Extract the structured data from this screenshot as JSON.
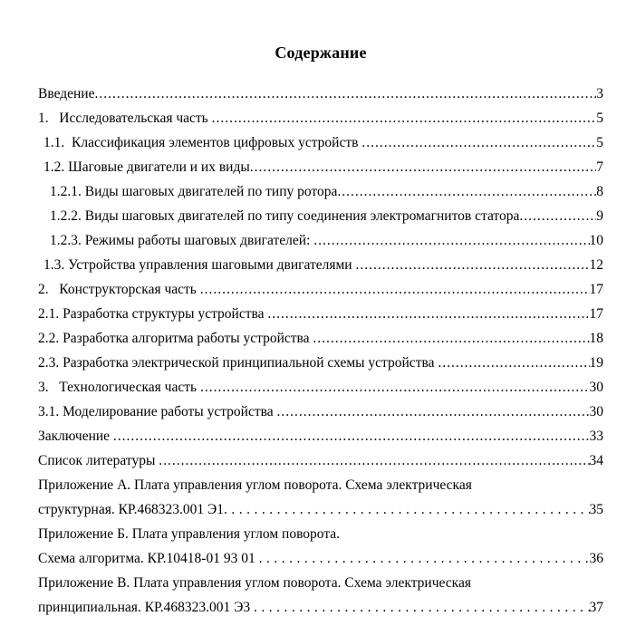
{
  "page": {
    "title": "Содержание"
  },
  "toc": {
    "entries": [
      {
        "label": "Введение",
        "page": "3",
        "indent": 0,
        "leader": "tight"
      },
      {
        "label": "1.   Исследовательская часть ",
        "page": "5",
        "indent": 0,
        "leader": "tight"
      },
      {
        "label": "1.1.  Классификация элементов цифровых устройств ",
        "page": "5",
        "indent": 1,
        "leader": "tight"
      },
      {
        "label": "1.2. Шаговые двигатели и их виды",
        "page": "7",
        "indent": 1,
        "leader": "tight"
      },
      {
        "label": "1.2.1. Виды шаговых двигателей по типу ротора",
        "page": "8",
        "indent": 2,
        "leader": "tight"
      },
      {
        "label": "1.2.2. Виды шаговых двигателей по типу соединения электромагнитов статора",
        "page": "9",
        "indent": 2,
        "leader": "tight"
      },
      {
        "label": "1.2.3. Режимы работы шаговых двигателей: ",
        "page": "10",
        "indent": 2,
        "leader": "tight"
      },
      {
        "label": "1.3. Устройства управления шаговыми двигателями ",
        "page": "12",
        "indent": 1,
        "leader": "tight"
      },
      {
        "label": "2.   Конструкторская часть ",
        "page": "17",
        "indent": 0,
        "leader": "tight"
      },
      {
        "label": "2.1. Разработка структуры устройства ",
        "page": "17",
        "indent": 0,
        "leader": "tight"
      },
      {
        "label": "2.2. Разработка алгоритма работы устройства ",
        "page": "18",
        "indent": 0,
        "leader": "tight"
      },
      {
        "label": "2.3. Разработка электрической принципиальной схемы устройства ",
        "page": "19",
        "indent": 0,
        "leader": "tight"
      },
      {
        "label": "3.   Технологическая часть ",
        "page": "30",
        "indent": 0,
        "leader": "tight"
      },
      {
        "label": "3.1. Моделирование работы устройства ",
        "page": "30",
        "indent": 0,
        "leader": "tight"
      },
      {
        "label": "Заключение ",
        "page": "33",
        "indent": 0,
        "leader": "tight"
      },
      {
        "label": "Список литературы ",
        "page": "34",
        "indent": 0,
        "leader": "tight"
      },
      {
        "label": "Приложение А. Плата управления углом поворота. Схема электрическая",
        "page": null,
        "indent": 0,
        "leader": "none"
      },
      {
        "label": "структурная. КР.468323.001 Э1",
        "page": "35",
        "indent": 0,
        "leader": "wide"
      },
      {
        "label": "Приложение Б. Плата управления углом поворота.",
        "page": null,
        "indent": 0,
        "leader": "none"
      },
      {
        "label": "Схема алгоритма. КР.10418-01 93 01 ",
        "page": "36",
        "indent": 0,
        "leader": "wide"
      },
      {
        "label": "Приложение В. Плата управления углом поворота. Схема электрическая",
        "page": null,
        "indent": 0,
        "leader": "none"
      },
      {
        "label": "принципиальная. КР.468323.001 Э3 ",
        "page": "37",
        "indent": 0,
        "leader": "wide"
      }
    ]
  }
}
